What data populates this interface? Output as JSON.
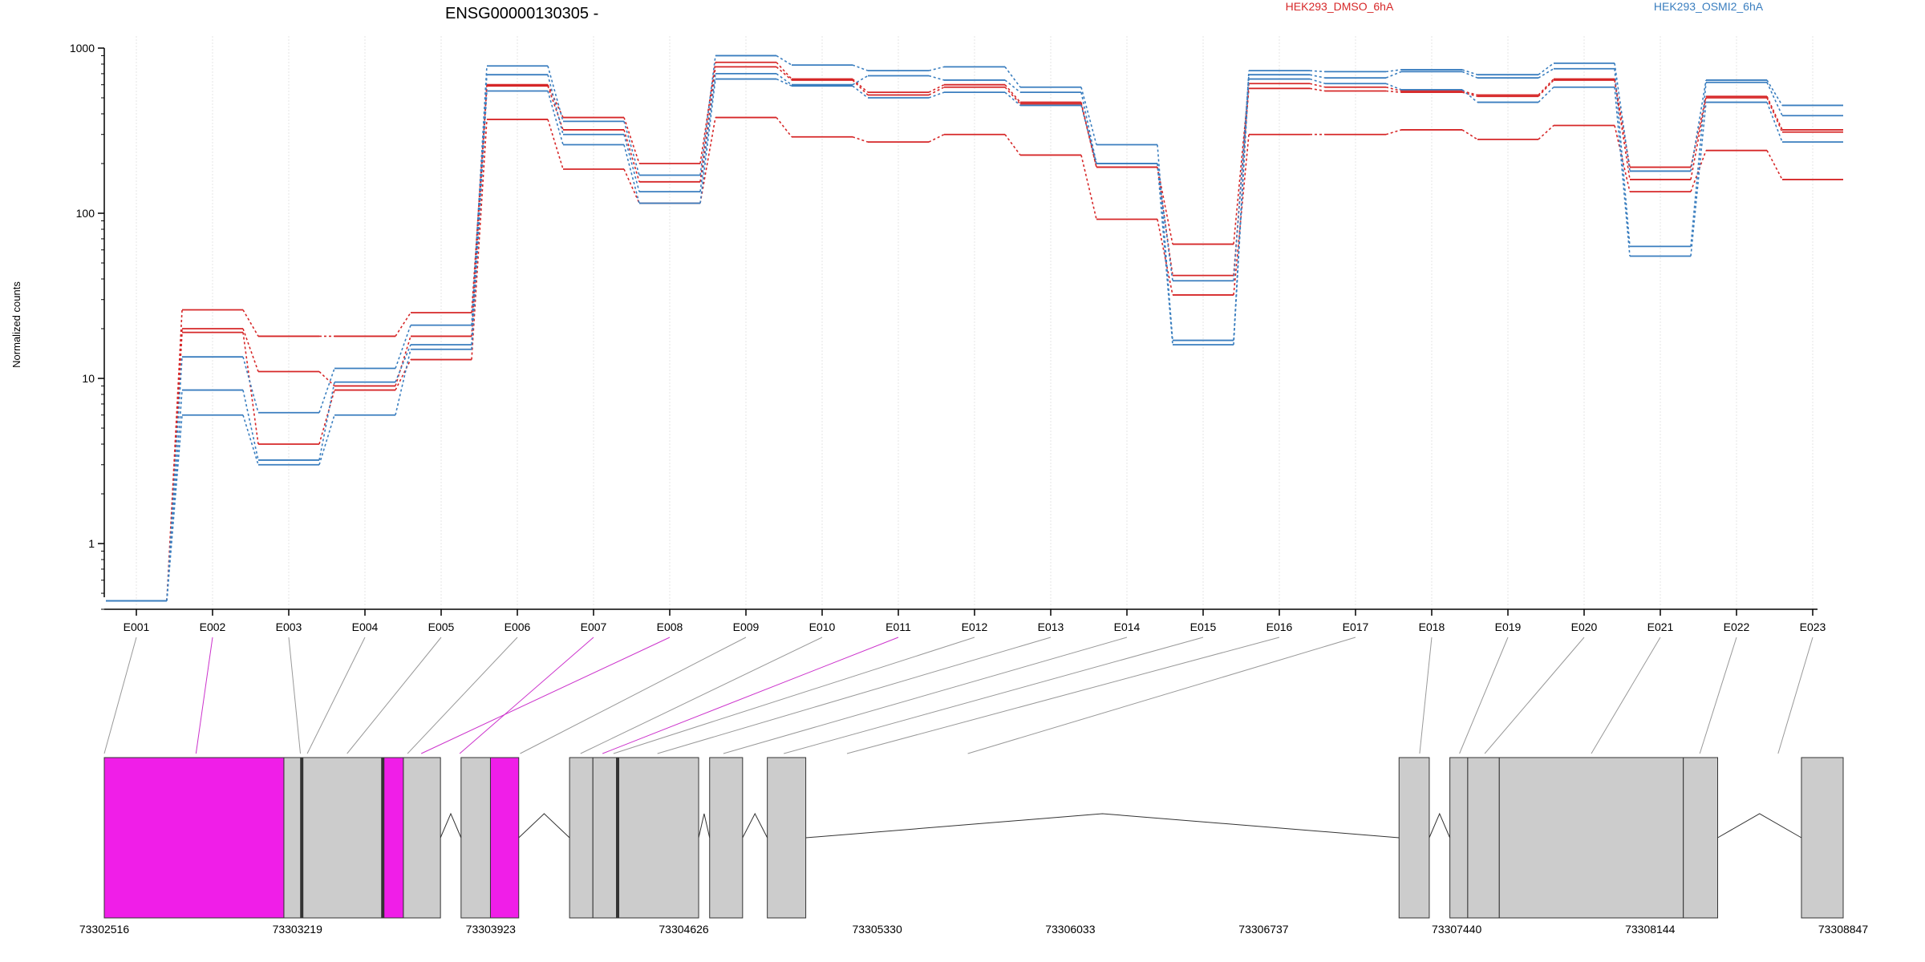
{
  "chart_data": {
    "type": "line",
    "title": "ENSG00000130305 -",
    "ylabel": "Normalized counts",
    "yscale": "log",
    "ylim": [
      0.4,
      1000
    ],
    "yticks": [
      1,
      10,
      100,
      1000
    ],
    "ytick_labels": [
      "1",
      "10",
      "100",
      "1000"
    ],
    "grid": true,
    "legend_position": "top",
    "categories": [
      "E001",
      "E002",
      "E003",
      "E004",
      "E005",
      "E006",
      "E007",
      "E008",
      "E009",
      "E010",
      "E011",
      "E012",
      "E013",
      "E014",
      "E015",
      "E016",
      "E017",
      "E018",
      "E019",
      "E020",
      "E021",
      "E022",
      "E023"
    ],
    "series": [
      {
        "name": "HEK293_DMSO_6hA",
        "color": "#d62728",
        "values": [
          0.45,
          26,
          18,
          18,
          25,
          600,
          380,
          200,
          820,
          650,
          540,
          600,
          470,
          190,
          65,
          610,
          580,
          550,
          520,
          650,
          190,
          510,
          320
        ]
      },
      {
        "name": "HEK293_DMSO_6hA",
        "color": "#d62728",
        "values": [
          0.45,
          20,
          11,
          9,
          18,
          590,
          320,
          155,
          770,
          640,
          520,
          580,
          460,
          190,
          42,
          570,
          550,
          540,
          510,
          640,
          160,
          500,
          310
        ]
      },
      {
        "name": "HEK293_DMSO_6hA",
        "color": "#d62728",
        "values": [
          0.45,
          19,
          4,
          8.5,
          13,
          370,
          185,
          115,
          380,
          290,
          270,
          300,
          225,
          92,
          32,
          300,
          300,
          320,
          280,
          340,
          135,
          240,
          160
        ]
      },
      {
        "name": "HEK293_OSMI2_6hA",
        "color": "#3a7ebf",
        "values": [
          0.45,
          13.5,
          6.2,
          11.5,
          21,
          780,
          360,
          170,
          900,
          790,
          730,
          770,
          580,
          260,
          17,
          730,
          720,
          740,
          690,
          810,
          180,
          640,
          450
        ]
      },
      {
        "name": "HEK293_OSMI2_6hA",
        "color": "#3a7ebf",
        "values": [
          0.45,
          8.5,
          3.2,
          9.5,
          16,
          690,
          300,
          135,
          700,
          600,
          680,
          640,
          540,
          200,
          39,
          690,
          660,
          720,
          660,
          750,
          63,
          620,
          390
        ]
      },
      {
        "name": "HEK293_OSMI2_6hA",
        "color": "#3a7ebf",
        "values": [
          0.45,
          6,
          3,
          6,
          15,
          550,
          260,
          115,
          650,
          590,
          500,
          540,
          450,
          200,
          16,
          650,
          610,
          560,
          470,
          580,
          55,
          470,
          270
        ]
      }
    ],
    "genome": {
      "start": 73302516,
      "end": 73308847,
      "tick_labels": [
        "73302516",
        "73303219",
        "73303923",
        "73304626",
        "73305330",
        "73306033",
        "73306737",
        "73307440",
        "73308144",
        "73308847"
      ],
      "exons": [
        {
          "start": 73302516,
          "end": 73303170,
          "color": "#f01ee8"
        },
        {
          "start": 73303170,
          "end": 73303235,
          "color": "#cccccc"
        },
        {
          "start": 73303235,
          "end": 73303530,
          "color": "#cccccc"
        },
        {
          "start": 73303530,
          "end": 73303605,
          "color": "#f01ee8"
        },
        {
          "start": 73303605,
          "end": 73303740,
          "color": "#cccccc"
        },
        {
          "start": 73303815,
          "end": 73303922,
          "color": "#cccccc"
        },
        {
          "start": 73303922,
          "end": 73304025,
          "color": "#f01ee8"
        },
        {
          "start": 73304210,
          "end": 73304295,
          "color": "#cccccc"
        },
        {
          "start": 73304295,
          "end": 73304385,
          "color": "#cccccc"
        },
        {
          "start": 73304385,
          "end": 73304680,
          "color": "#cccccc"
        },
        {
          "start": 73304720,
          "end": 73304840,
          "color": "#cccccc"
        },
        {
          "start": 73304930,
          "end": 73305070,
          "color": "#cccccc"
        },
        {
          "start": 73307230,
          "end": 73307340,
          "color": "#cccccc"
        },
        {
          "start": 73307415,
          "end": 73307480,
          "color": "#cccccc"
        },
        {
          "start": 73307480,
          "end": 73307595,
          "color": "#cccccc"
        },
        {
          "start": 73307595,
          "end": 73308265,
          "color": "#cccccc"
        },
        {
          "start": 73308265,
          "end": 73308390,
          "color": "#cccccc"
        },
        {
          "start": 73308695,
          "end": 73308847,
          "color": "#cccccc"
        }
      ],
      "exon_anchor_positions": [
        73302516,
        73302850,
        73303230,
        73303255,
        73303400,
        73303620,
        73303810,
        73303670,
        73304030,
        73304250,
        73304330,
        73304370,
        73304530,
        73304770,
        73304990,
        73305220,
        73305660,
        73307305,
        73307450,
        73307542,
        73307930,
        73308325,
        73308610
      ],
      "highlighted_exons": [
        "E002",
        "E007",
        "E008",
        "E011"
      ],
      "highlight_color": "#cc33cc"
    }
  }
}
